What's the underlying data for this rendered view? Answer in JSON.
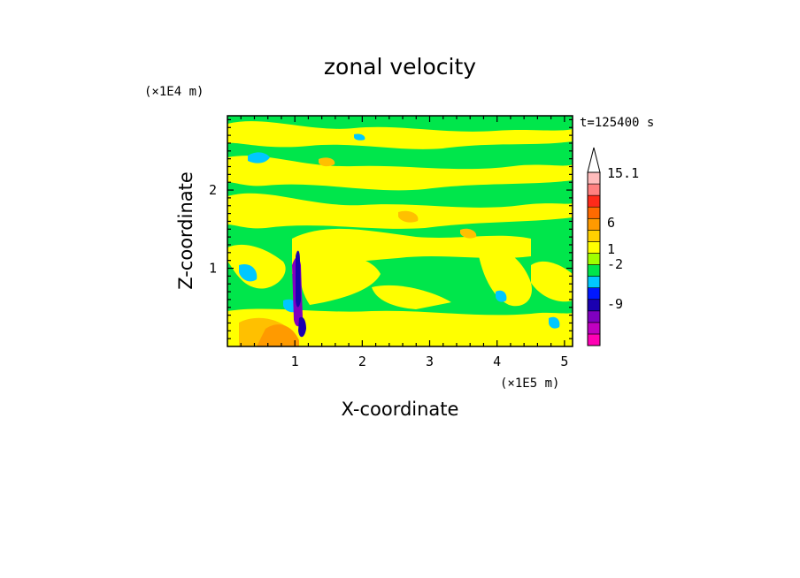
{
  "chart_data": {
    "type": "heatmap",
    "title": "zonal velocity",
    "xlabel": "X-coordinate",
    "ylabel": "Z-coordinate",
    "x_unit": "(×1E5 m)",
    "y_unit": "(×1E4 m)",
    "time_label": "t=125400 s",
    "xlim": [
      0,
      5.12
    ],
    "ylim": [
      0,
      2.95
    ],
    "x_ticks": [
      "1",
      "2",
      "3",
      "4",
      "5"
    ],
    "y_ticks": [
      "1",
      "2"
    ],
    "colorbar": {
      "labels": [
        "15.1",
        "6",
        "1",
        "-2",
        "-9"
      ],
      "levels": [
        "#ff00b4",
        "#c000c0",
        "#8000c0",
        "#1a00b0",
        "#0018ff",
        "#00c8ff",
        "#00e64b",
        "#a0ff00",
        "#ffff00",
        "#ffd000",
        "#ff9a00",
        "#ff6a00",
        "#ff2a1a",
        "#ff8080",
        "#ffbcbc",
        "#ffffff"
      ]
    },
    "fields": {
      "background": "#00e64b",
      "band_yellow": "#ffff00",
      "band_cyan": "#00c8ff",
      "band_orange": "#ffc000",
      "jet_blue": "#1a00b0",
      "jet_purple": "#8000c0",
      "jet_orange": "#ff9a00"
    },
    "grid": false,
    "legend": "colorbar right"
  }
}
